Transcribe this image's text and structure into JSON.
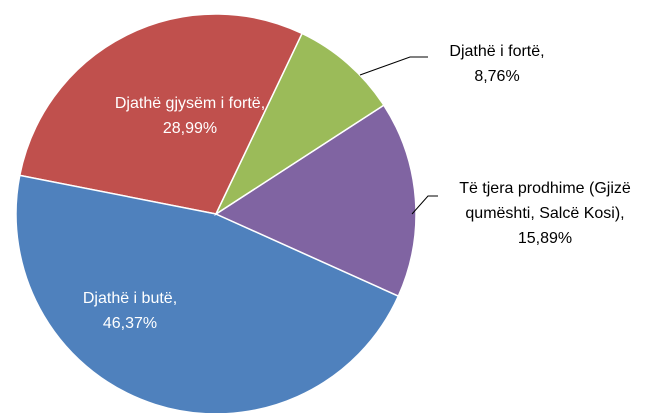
{
  "chart_data": {
    "type": "pie",
    "categories": [
      "Djathë i fortë,",
      "Të tjera prodhime (Gjizë qumështi, Salcë Kosi),",
      "Djathë i butë,",
      "Djathë gjysëm i fortë,"
    ],
    "values": [
      8.76,
      15.89,
      46.37,
      28.99
    ],
    "value_labels": [
      "8,76%",
      "15,89%",
      "46,37%",
      "28,99%"
    ],
    "colors": [
      "#9bbb59",
      "#8064a2",
      "#4f81bd",
      "#c0504d"
    ]
  }
}
